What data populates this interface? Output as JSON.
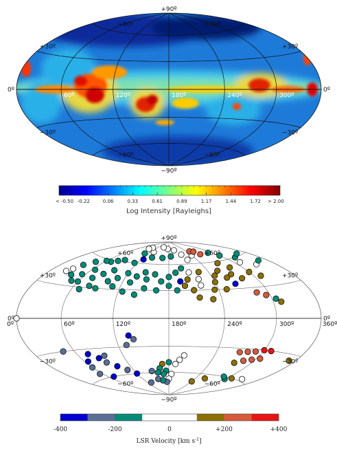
{
  "chart_data": [
    {
      "type": "heatmap",
      "projection": "hammer-aitoff galactic",
      "colorbar": {
        "title": "Log Intensity [Rayleighs]",
        "ticks": [
          "< -0.50",
          "-0.22",
          "0.06",
          "0.33",
          "0.61",
          "0.89",
          "1.17",
          "1.44",
          "1.72",
          "> 2.00"
        ],
        "range": [
          -0.5,
          2.0
        ]
      },
      "lat_labels": [
        "+90º",
        "+60º",
        "+60º",
        "+30º",
        "+30º",
        "0º",
        "0º",
        "−30º",
        "−30º",
        "−60º",
        "−60º",
        "−90º"
      ],
      "lon_labels": [
        "360º",
        "300º",
        "240º",
        "180º",
        "120º",
        "60º",
        "0º"
      ]
    },
    {
      "type": "scatter",
      "projection": "hammer-aitoff galactic",
      "colorbar": {
        "title": "LSR Velocity [km s",
        "title_sup": "-1",
        "title_end": "]",
        "ticks": [
          "-400",
          "-200",
          "0",
          "+200",
          "+400"
        ],
        "range": [
          -400,
          400
        ],
        "bins": [
          "#0000d0",
          "#5a6e96",
          "#008c78",
          "#ffffff",
          "#ffffff",
          "#8c7000",
          "#d85a3c",
          "#e81414"
        ]
      },
      "lat_labels": [
        "+90º",
        "+60º",
        "+60º",
        "+30º",
        "+30º",
        "0º",
        "0º",
        "−30º",
        "−30º",
        "−60º",
        "−60º",
        "−90º"
      ],
      "lon_labels": [
        "360º",
        "300º",
        "240º",
        "180º",
        "120º",
        "60º",
        "0º"
      ],
      "points": [
        {
          "l": 175,
          "b": 80,
          "v": 0
        },
        {
          "l": 200,
          "b": 78,
          "v": 0
        },
        {
          "l": 150,
          "b": 82,
          "v": 0
        },
        {
          "l": 130,
          "b": 75,
          "v": 0
        },
        {
          "l": 110,
          "b": 72,
          "v": -150
        },
        {
          "l": 100,
          "b": 80,
          "v": 0
        },
        {
          "l": 95,
          "b": 78,
          "v": 0
        },
        {
          "l": 240,
          "b": 70,
          "v": 0
        },
        {
          "l": 250,
          "b": 75,
          "v": 260
        },
        {
          "l": 260,
          "b": 74,
          "v": 230
        },
        {
          "l": 265,
          "b": 70,
          "v": 230
        },
        {
          "l": 215,
          "b": 72,
          "v": 0
        },
        {
          "l": 220,
          "b": 65,
          "v": 0
        },
        {
          "l": 185,
          "b": 70,
          "v": -150
        },
        {
          "l": 165,
          "b": 68,
          "v": -150
        },
        {
          "l": 140,
          "b": 68,
          "v": -150
        },
        {
          "l": 125,
          "b": 65,
          "v": -350
        },
        {
          "l": 115,
          "b": 60,
          "v": -150
        },
        {
          "l": 90,
          "b": 62,
          "v": -150
        },
        {
          "l": 80,
          "b": 60,
          "v": -150
        },
        {
          "l": 70,
          "b": 58,
          "v": -150
        },
        {
          "l": 290,
          "b": 70,
          "v": -150
        },
        {
          "l": 300,
          "b": 65,
          "v": -150
        },
        {
          "l": 320,
          "b": 60,
          "v": -150
        },
        {
          "l": 340,
          "b": 62,
          "v": -150
        },
        {
          "l": 310,
          "b": 55,
          "v": 0
        },
        {
          "l": 330,
          "b": 50,
          "v": 0
        },
        {
          "l": 345,
          "b": 52,
          "v": -150
        },
        {
          "l": 270,
          "b": 58,
          "v": 150
        },
        {
          "l": 280,
          "b": 52,
          "v": 150
        },
        {
          "l": 300,
          "b": 45,
          "v": 150
        },
        {
          "l": 310,
          "b": 40,
          "v": 150
        },
        {
          "l": 280,
          "b": 40,
          "v": 150
        },
        {
          "l": 270,
          "b": 45,
          "v": 150
        },
        {
          "l": 260,
          "b": 42,
          "v": 150
        },
        {
          "l": 255,
          "b": 50,
          "v": 150
        },
        {
          "l": 245,
          "b": 45,
          "v": 150
        },
        {
          "l": 240,
          "b": 38,
          "v": 150
        },
        {
          "l": 235,
          "b": 30,
          "v": 150
        },
        {
          "l": 250,
          "b": 30,
          "v": 150
        },
        {
          "l": 225,
          "b": 50,
          "v": 150
        },
        {
          "l": 220,
          "b": 42,
          "v": 0
        },
        {
          "l": 210,
          "b": 50,
          "v": 0
        },
        {
          "l": 205,
          "b": 42,
          "v": 150
        },
        {
          "l": 200,
          "b": 55,
          "v": -150
        },
        {
          "l": 190,
          "b": 50,
          "v": -150
        },
        {
          "l": 180,
          "b": 45,
          "v": -150
        },
        {
          "l": 170,
          "b": 40,
          "v": -150
        },
        {
          "l": 160,
          "b": 48,
          "v": -150
        },
        {
          "l": 150,
          "b": 42,
          "v": -150
        },
        {
          "l": 145,
          "b": 50,
          "v": -150
        },
        {
          "l": 135,
          "b": 45,
          "v": -150
        },
        {
          "l": 130,
          "b": 38,
          "v": -150
        },
        {
          "l": 120,
          "b": 48,
          "v": -150
        },
        {
          "l": 110,
          "b": 42,
          "v": -150
        },
        {
          "l": 100,
          "b": 38,
          "v": -150
        },
        {
          "l": 95,
          "b": 50,
          "v": -150
        },
        {
          "l": 85,
          "b": 45,
          "v": -150
        },
        {
          "l": 75,
          "b": 40,
          "v": -150
        },
        {
          "l": 65,
          "b": 48,
          "v": -150
        },
        {
          "l": 55,
          "b": 42,
          "v": -150
        },
        {
          "l": 50,
          "b": 35,
          "v": -150
        },
        {
          "l": 40,
          "b": 40,
          "v": -150
        },
        {
          "l": 35,
          "b": 50,
          "v": -150
        },
        {
          "l": 30,
          "b": 45,
          "v": 0
        },
        {
          "l": 25,
          "b": 42,
          "v": 0
        },
        {
          "l": 45,
          "b": 55,
          "v": -150
        },
        {
          "l": 60,
          "b": 58,
          "v": -150
        },
        {
          "l": 180,
          "b": 35,
          "v": -150
        },
        {
          "l": 165,
          "b": 30,
          "v": -150
        },
        {
          "l": 150,
          "b": 32,
          "v": -150
        },
        {
          "l": 190,
          "b": 30,
          "v": -150
        },
        {
          "l": 200,
          "b": 35,
          "v": 150
        },
        {
          "l": 210,
          "b": 30,
          "v": 150
        },
        {
          "l": 215,
          "b": 22,
          "v": 150
        },
        {
          "l": 230,
          "b": 20,
          "v": 150
        },
        {
          "l": 220,
          "b": 35,
          "v": 0
        },
        {
          "l": 195,
          "b": 40,
          "v": -350
        },
        {
          "l": 265,
          "b": 35,
          "v": -350
        },
        {
          "l": 285,
          "b": 25,
          "v": 250
        },
        {
          "l": 295,
          "b": 22,
          "v": 250
        },
        {
          "l": 305,
          "b": 18,
          "v": -150
        },
        {
          "l": 310,
          "b": 15,
          "v": 150
        },
        {
          "l": 110,
          "b": 33,
          "v": -150
        },
        {
          "l": 90,
          "b": 30,
          "v": -150
        },
        {
          "l": 80,
          "b": 32,
          "v": -150
        },
        {
          "l": 70,
          "b": 28,
          "v": -150
        },
        {
          "l": 125,
          "b": 28,
          "v": -150
        },
        {
          "l": 140,
          "b": 25,
          "v": -150
        },
        {
          "l": 60,
          "b": 35,
          "v": -150
        },
        {
          "l": 0,
          "b": 0,
          "v": 0
        },
        {
          "l": 300,
          "b": -30,
          "v": 350
        },
        {
          "l": 310,
          "b": -30,
          "v": 330
        },
        {
          "l": 290,
          "b": -32,
          "v": 250
        },
        {
          "l": 280,
          "b": -33,
          "v": 250
        },
        {
          "l": 270,
          "b": -34,
          "v": 250
        },
        {
          "l": 305,
          "b": -38,
          "v": 250
        },
        {
          "l": 295,
          "b": -40,
          "v": 280
        },
        {
          "l": 285,
          "b": -42,
          "v": 250
        },
        {
          "l": 275,
          "b": -45,
          "v": 150
        },
        {
          "l": 350,
          "b": -35,
          "v": 150
        },
        {
          "l": 330,
          "b": -58,
          "v": 0
        },
        {
          "l": 310,
          "b": -60,
          "v": 150
        },
        {
          "l": 300,
          "b": -62,
          "v": -150
        },
        {
          "l": 290,
          "b": -60,
          "v": -150
        },
        {
          "l": 260,
          "b": -65,
          "v": 150
        },
        {
          "l": 240,
          "b": -70,
          "v": 150
        },
        {
          "l": 200,
          "b": -40,
          "v": 0
        },
        {
          "l": 195,
          "b": -45,
          "v": 0
        },
        {
          "l": 190,
          "b": -50,
          "v": 0
        },
        {
          "l": 180,
          "b": -48,
          "v": -150
        },
        {
          "l": 170,
          "b": -50,
          "v": 150
        },
        {
          "l": 165,
          "b": -55,
          "v": -150
        },
        {
          "l": 175,
          "b": -58,
          "v": -150
        },
        {
          "l": 170,
          "b": -62,
          "v": -150
        },
        {
          "l": 160,
          "b": -60,
          "v": -150
        },
        {
          "l": 150,
          "b": -58,
          "v": -250
        },
        {
          "l": 185,
          "b": -62,
          "v": 0
        },
        {
          "l": 180,
          "b": -68,
          "v": 0
        },
        {
          "l": 175,
          "b": -72,
          "v": -250
        },
        {
          "l": 165,
          "b": -70,
          "v": -150
        },
        {
          "l": 155,
          "b": -68,
          "v": -250
        },
        {
          "l": 130,
          "b": -72,
          "v": -250
        },
        {
          "l": 120,
          "b": -60,
          "v": -350
        },
        {
          "l": 110,
          "b": -55,
          "v": -250
        },
        {
          "l": 100,
          "b": -50,
          "v": -350
        },
        {
          "l": 90,
          "b": -45,
          "v": -250
        },
        {
          "l": 85,
          "b": -40,
          "v": -350
        },
        {
          "l": 95,
          "b": -38,
          "v": -250
        },
        {
          "l": 75,
          "b": -35,
          "v": -350
        },
        {
          "l": 65,
          "b": -42,
          "v": -350
        },
        {
          "l": 60,
          "b": -48,
          "v": -250
        },
        {
          "l": 55,
          "b": -55,
          "v": -250
        },
        {
          "l": 130,
          "b": -28,
          "v": -250
        },
        {
          "l": 140,
          "b": -22,
          "v": -250
        },
        {
          "l": 135,
          "b": -18,
          "v": -350
        },
        {
          "l": 45,
          "b": -30,
          "v": -250
        },
        {
          "l": 70,
          "b": -60,
          "v": -350
        }
      ]
    }
  ]
}
